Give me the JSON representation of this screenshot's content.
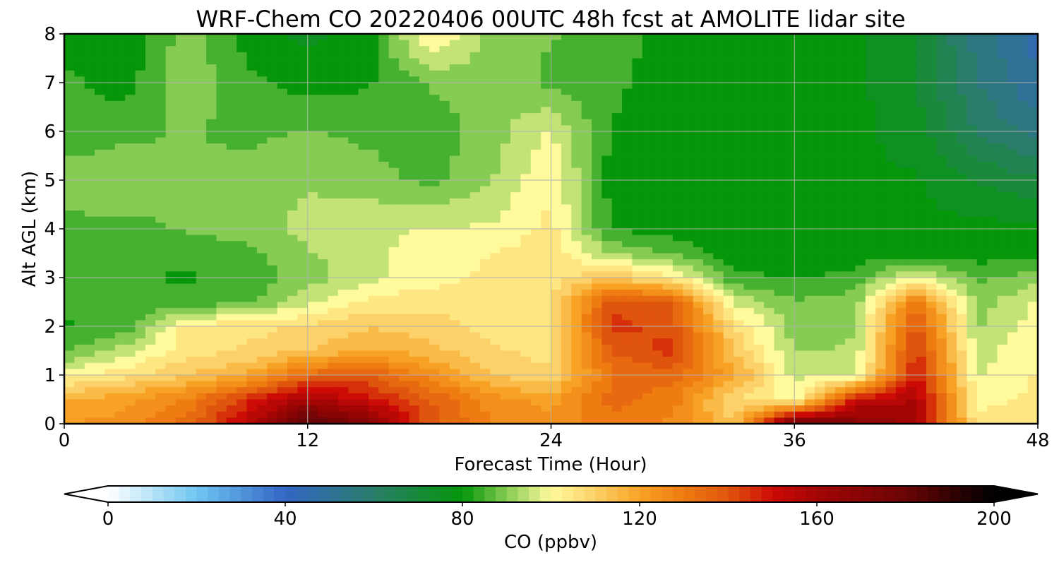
{
  "chart_data": {
    "type": "heatmap",
    "title": "WRF-Chem CO  20220406 00UTC 48h fcst at AMOLITE lidar site",
    "xlabel": "Forecast Time (Hour)",
    "ylabel": "Alt AGL (km)",
    "xlim": [
      0,
      48
    ],
    "ylim": [
      0,
      8
    ],
    "xticks": [
      0,
      12,
      24,
      36,
      48
    ],
    "yticks": [
      0,
      1,
      2,
      3,
      4,
      5,
      6,
      7,
      8
    ],
    "grid": true,
    "x": [
      0,
      3,
      6,
      9,
      12,
      15,
      18,
      21,
      24,
      27,
      30,
      33,
      36,
      39,
      42,
      45,
      48
    ],
    "y": [
      0,
      0.5,
      1,
      1.5,
      2,
      2.5,
      3,
      3.5,
      4,
      5,
      6,
      7,
      8
    ],
    "z": [
      [
        122,
        125,
        135,
        155,
        185,
        170,
        140,
        128,
        125,
        130,
        126,
        112,
        178,
        170,
        160,
        104,
        108
      ],
      [
        118,
        120,
        128,
        145,
        160,
        150,
        138,
        125,
        120,
        135,
        130,
        108,
        98,
        150,
        158,
        100,
        104
      ],
      [
        100,
        106,
        112,
        118,
        135,
        138,
        125,
        112,
        108,
        132,
        135,
        120,
        96,
        96,
        150,
        97,
        103
      ],
      [
        86,
        95,
        105,
        108,
        112,
        118,
        114,
        108,
        106,
        138,
        145,
        112,
        92,
        93,
        145,
        95,
        102
      ],
      [
        82,
        84,
        104,
        106,
        108,
        112,
        110,
        106,
        106,
        145,
        140,
        108,
        90,
        92,
        140,
        92,
        100
      ],
      [
        84,
        83,
        84,
        86,
        96,
        104,
        106,
        106,
        106,
        140,
        138,
        96,
        88,
        90,
        130,
        90,
        98
      ],
      [
        84,
        83,
        82,
        84,
        90,
        96,
        100,
        104,
        106,
        112,
        104,
        84,
        82,
        84,
        100,
        86,
        90
      ],
      [
        85,
        84,
        84,
        86,
        92,
        96,
        100,
        102,
        106,
        92,
        86,
        80,
        79,
        80,
        80,
        80,
        80
      ],
      [
        86,
        86,
        88,
        90,
        94,
        96,
        98,
        98,
        104,
        82,
        80,
        79,
        79,
        79,
        79,
        79,
        79
      ],
      [
        90,
        92,
        88,
        90,
        92,
        90,
        86,
        92,
        102,
        80,
        79,
        79,
        79,
        78,
        78,
        72,
        68
      ],
      [
        84,
        86,
        88,
        86,
        88,
        86,
        84,
        90,
        98,
        82,
        79,
        79,
        79,
        79,
        75,
        62,
        55
      ],
      [
        84,
        80,
        92,
        84,
        80,
        82,
        88,
        92,
        86,
        84,
        79,
        79,
        79,
        79,
        72,
        58,
        48
      ],
      [
        80,
        78,
        90,
        80,
        76,
        80,
        104,
        90,
        88,
        86,
        79,
        79,
        79,
        79,
        72,
        55,
        45
      ]
    ],
    "colorbar": {
      "label": "CO  (ppbv)",
      "min": 0,
      "max": 200,
      "ticks": [
        0,
        40,
        80,
        120,
        160,
        200
      ],
      "extend": "both",
      "stops": [
        [
          0,
          "#ffffff"
        ],
        [
          20,
          "#6fc6f2"
        ],
        [
          40,
          "#3465c4"
        ],
        [
          60,
          "#2a7d6a"
        ],
        [
          80,
          "#05960a"
        ],
        [
          90,
          "#86cb52"
        ],
        [
          100,
          "#fffa9c"
        ],
        [
          110,
          "#fdd169"
        ],
        [
          120,
          "#f7a224"
        ],
        [
          130,
          "#ee7c11"
        ],
        [
          140,
          "#e0550e"
        ],
        [
          150,
          "#cc0a06"
        ],
        [
          160,
          "#a30504"
        ],
        [
          180,
          "#6a0505"
        ],
        [
          200,
          "#000000"
        ]
      ]
    }
  }
}
